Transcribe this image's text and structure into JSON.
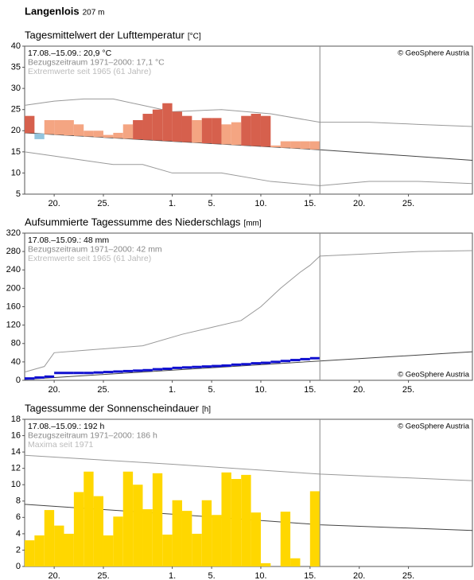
{
  "header": {
    "title": "Langenlois",
    "elevation": "207 m"
  },
  "chart_data": [
    {
      "type": "anomaly",
      "title": "Tagesmittelwert der Lufttemperatur",
      "unit": "[°C]",
      "notes": [
        "17.08.–15.09.: 20,9 °C",
        "Bezugszeitraum 1971–2000: 17,1 °C",
        "Extremwerte seit 1965 (61 Jahre)"
      ],
      "source": "© GeoSphere Austria",
      "source_corner": "top-right",
      "xlim": [
        0,
        45.5
      ],
      "xticks": [
        {
          "value": 3,
          "label": "20."
        },
        {
          "value": 8,
          "label": "25."
        },
        {
          "value": 15,
          "label": "1."
        },
        {
          "value": 19,
          "label": "5."
        },
        {
          "value": 24,
          "label": "10."
        },
        {
          "value": 29,
          "label": "15."
        },
        {
          "value": 34,
          "label": "20."
        },
        {
          "value": 39,
          "label": "25."
        }
      ],
      "ylim": [
        5,
        40
      ],
      "yticks": [
        5,
        10,
        15,
        20,
        25,
        30,
        35,
        40
      ],
      "x": [
        0,
        1,
        2,
        3,
        4,
        5,
        6,
        7,
        8,
        9,
        10,
        11,
        12,
        13,
        14,
        15,
        16,
        17,
        18,
        19,
        20,
        21,
        22,
        23,
        24,
        25,
        26,
        27,
        28,
        29
      ],
      "values": [
        23.5,
        18,
        22.5,
        22.5,
        22.5,
        21.5,
        20,
        20,
        19,
        19.5,
        21.5,
        22.5,
        24,
        25,
        26.5,
        24.5,
        23.5,
        22.5,
        23,
        23,
        21.5,
        22,
        23.5,
        24,
        23.5,
        16.5,
        17.5,
        17.5,
        17.5,
        17.5
      ],
      "colors": [
        "#d6604d",
        "#92c5de",
        "#f4a582",
        "#f4a582",
        "#f4a582",
        "#f4a582",
        "#f4a582",
        "#f4a582",
        "#f4a582",
        "#f4a582",
        "#f4a582",
        "#d6604d",
        "#d6604d",
        "#d6604d",
        "#d6604d",
        "#d6604d",
        "#d6604d",
        "#f4a582",
        "#d6604d",
        "#d6604d",
        "#f4a582",
        "#f4a582",
        "#d6604d",
        "#d6604d",
        "#d6604d",
        "#f4a582",
        "#f4a582",
        "#f4a582",
        "#f4a582",
        "#f4a582"
      ],
      "reference_lines": [
        {
          "color": "#444444",
          "x": [
            0,
            15,
            30,
            45.5
          ],
          "values": [
            19.5,
            17.5,
            15.5,
            13
          ]
        },
        {
          "color": "#999999",
          "x": [
            0,
            3,
            6,
            9,
            12,
            15,
            20,
            25,
            30,
            35,
            40,
            45.5
          ],
          "values": [
            26,
            27,
            27.5,
            27.5,
            26,
            24.5,
            25,
            24,
            22,
            22,
            21.5,
            21
          ]
        },
        {
          "color": "#999999",
          "x": [
            0,
            3,
            6,
            9,
            12,
            15,
            20,
            25,
            30,
            35,
            40,
            45.5
          ],
          "values": [
            15,
            14,
            13,
            12,
            12,
            10,
            10,
            8,
            7,
            8,
            8,
            7.5
          ]
        }
      ]
    },
    {
      "type": "step",
      "title": "Aufsummierte Tagessumme des Niederschlags",
      "unit": "[mm]",
      "notes": [
        "17.08.–15.09.: 48 mm",
        "Bezugszeitraum 1971–2000: 42 mm",
        "Extremwerte seit 1965 (61 Jahre)"
      ],
      "source": "© GeoSphere Austria",
      "source_corner": "bottom-right",
      "xlim": [
        0,
        45.5
      ],
      "xticks": [
        {
          "value": 3,
          "label": "20."
        },
        {
          "value": 8,
          "label": "25."
        },
        {
          "value": 15,
          "label": "1."
        },
        {
          "value": 19,
          "label": "5."
        },
        {
          "value": 24,
          "label": "10."
        },
        {
          "value": 29,
          "label": "15."
        },
        {
          "value": 34,
          "label": "20."
        },
        {
          "value": 39,
          "label": "25."
        }
      ],
      "ylim": [
        0,
        320
      ],
      "yticks": [
        0,
        40,
        80,
        120,
        160,
        200,
        240,
        280,
        320
      ],
      "x": [
        0,
        1,
        2,
        3,
        4,
        5,
        6,
        7,
        8,
        9,
        10,
        11,
        12,
        13,
        14,
        15,
        16,
        17,
        18,
        19,
        20,
        21,
        22,
        23,
        24,
        25,
        26,
        27,
        28,
        29
      ],
      "values": [
        4,
        6,
        8,
        16,
        16,
        16,
        16,
        17,
        18,
        19,
        20,
        21,
        22,
        24,
        25,
        27,
        28,
        29,
        30,
        31,
        32,
        34,
        35,
        37,
        38,
        40,
        42,
        44,
        46,
        48
      ],
      "color": "#1010d0",
      "reference_lines": [
        {
          "color": "#444444",
          "x": [
            0,
            30,
            45.5
          ],
          "values": [
            2,
            42,
            62
          ]
        },
        {
          "color": "#999999",
          "x": [
            0,
            2,
            3,
            6,
            12,
            16,
            19,
            22,
            24,
            26,
            28,
            29,
            30,
            35,
            40,
            45.5
          ],
          "values": [
            18,
            30,
            60,
            65,
            75,
            100,
            115,
            130,
            160,
            200,
            235,
            250,
            270,
            275,
            280,
            282
          ]
        }
      ]
    },
    {
      "type": "bar",
      "title": "Tagessumme der Sonnenscheindauer",
      "unit": "[h]",
      "notes": [
        "17.08.–15.09.: 192 h",
        "Bezugszeitraum 1971–2000: 186 h",
        "Maxima seit 1971"
      ],
      "source": "© GeoSphere Austria",
      "source_corner": "top-right",
      "xlim": [
        0,
        45.5
      ],
      "xticks": [
        {
          "value": 3,
          "label": "20."
        },
        {
          "value": 8,
          "label": "25."
        },
        {
          "value": 15,
          "label": "1."
        },
        {
          "value": 19,
          "label": "5."
        },
        {
          "value": 24,
          "label": "10."
        },
        {
          "value": 29,
          "label": "15."
        },
        {
          "value": 34,
          "label": "20."
        },
        {
          "value": 39,
          "label": "25."
        }
      ],
      "ylim": [
        0,
        18
      ],
      "yticks": [
        0,
        2,
        4,
        6,
        8,
        10,
        12,
        14,
        16,
        18
      ],
      "x": [
        0,
        1,
        2,
        3,
        4,
        5,
        6,
        7,
        8,
        9,
        10,
        11,
        12,
        13,
        14,
        15,
        16,
        17,
        18,
        19,
        20,
        21,
        22,
        23,
        24,
        25,
        26,
        27,
        28,
        29
      ],
      "values": [
        3.2,
        3.8,
        6.9,
        5,
        4,
        9.1,
        11.6,
        8.6,
        3.8,
        6.1,
        11.6,
        10,
        7,
        11.4,
        3.9,
        8.1,
        6.8,
        4,
        8.1,
        6.3,
        11.5,
        10.7,
        11.2,
        6.6,
        0.4,
        0,
        6.7,
        1,
        0,
        9.2
      ],
      "color": "#ffd700",
      "reference_lines": [
        {
          "color": "#444444",
          "x": [
            0,
            15,
            30,
            45.5
          ],
          "values": [
            7.6,
            6.4,
            5.1,
            4.4
          ]
        },
        {
          "color": "#999999",
          "x": [
            0,
            15,
            30,
            45.5
          ],
          "values": [
            13.6,
            12.5,
            11.3,
            10.5
          ]
        }
      ]
    }
  ]
}
